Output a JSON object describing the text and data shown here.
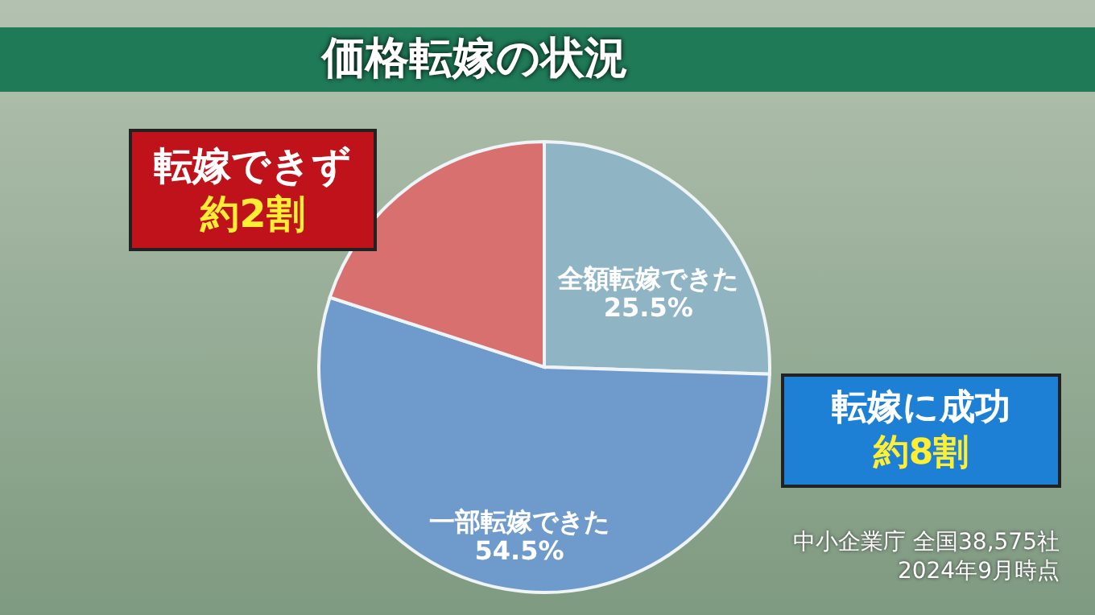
{
  "chart_data": {
    "type": "pie",
    "title": "価格転嫁の状況",
    "categories": [
      "全額転嫁できた",
      "一部転嫁できた",
      "転嫁できず"
    ],
    "values": [
      25.5,
      54.5,
      20
    ],
    "colors": [
      "#8fb4c4",
      "#6f9acc",
      "#d97070"
    ],
    "value_labels": [
      "25.5%",
      "54.5%",
      "約2割"
    ],
    "annotations": [
      "転嫁に成功",
      "約8割",
      "中小企業庁 全国38,575社",
      "2024年9月時点"
    ]
  }
}
